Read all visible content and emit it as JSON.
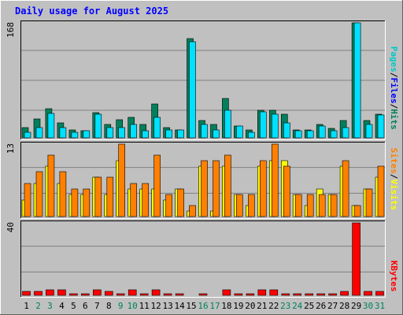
{
  "title": "Daily usage for August 2025",
  "colors": {
    "background": "#c0c0c0",
    "grid": "#808080",
    "hits": "#00805c",
    "files": "#00e0ff",
    "pages": "#00c8c8",
    "sites": "#ff8000",
    "visits": "#ffff00",
    "kbytes": "#ff0000",
    "title": "#0000ff",
    "weekday": "#000000",
    "weekend": "#00805c"
  },
  "chart_data": {
    "type": "bar",
    "categories": [
      "1",
      "2",
      "3",
      "4",
      "5",
      "6",
      "7",
      "8",
      "9",
      "10",
      "11",
      "12",
      "13",
      "14",
      "15",
      "16",
      "17",
      "18",
      "19",
      "20",
      "21",
      "22",
      "23",
      "24",
      "25",
      "26",
      "27",
      "28",
      "29",
      "30",
      "31"
    ],
    "weekend_days": [
      "2",
      "3",
      "9",
      "10",
      "16",
      "17",
      "23",
      "24",
      "30",
      "31"
    ],
    "panels": [
      {
        "id": "hits",
        "max_label": "168",
        "ylim": [
          0,
          168
        ],
        "legend": [
          {
            "text": "Pages",
            "color": "#00c8c8"
          },
          {
            "text": "/",
            "color": "#000000"
          },
          {
            "text": "Files",
            "color": "#0000ff"
          },
          {
            "text": "/",
            "color": "#000000"
          },
          {
            "text": "Hits",
            "color": "#00805c"
          }
        ],
        "series": [
          {
            "name": "Hits",
            "color": "#00805c",
            "values": [
              15,
              28,
              42,
              22,
              12,
              10,
              37,
              20,
              26,
              30,
              19,
              50,
              15,
              12,
              145,
              25,
              20,
              58,
              17,
              12,
              40,
              40,
              35,
              12,
              12,
              20,
              14,
              25,
              168,
              25,
              35
            ]
          },
          {
            "name": "Files",
            "color": "#00e0ff",
            "values": [
              8,
              15,
              36,
              15,
              8,
              10,
              35,
              15,
              15,
              20,
              10,
              30,
              12,
              12,
              140,
              20,
              12,
              40,
              17,
              8,
              38,
              35,
              22,
              10,
              10,
              17,
              10,
              15,
              168,
              20,
              33
            ]
          }
        ]
      },
      {
        "id": "sites",
        "max_label": "13",
        "ylim": [
          0,
          13
        ],
        "legend": [
          {
            "text": "Sites",
            "color": "#ff8000"
          },
          {
            "text": "/",
            "color": "#000000"
          },
          {
            "text": "Visits",
            "color": "#ffff00"
          }
        ],
        "series": [
          {
            "name": "Visits",
            "color": "#ffff00",
            "values": [
              3,
              6,
              9,
              6,
              4,
              4,
              7,
              4,
              10,
              5,
              5,
              5,
              3,
              5,
              1,
              9,
              1,
              9,
              4,
              2,
              9,
              10,
              10,
              4,
              2,
              5,
              4,
              9,
              2,
              5,
              7
            ]
          },
          {
            "name": "Sites",
            "color": "#ff8000",
            "values": [
              6,
              8,
              11,
              8,
              5,
              5,
              7,
              7,
              13,
              6,
              6,
              11,
              4,
              5,
              2,
              10,
              10,
              11,
              4,
              4,
              10,
              13,
              9,
              4,
              4,
              4,
              4,
              10,
              2,
              5,
              9
            ]
          }
        ]
      },
      {
        "id": "kbytes",
        "max_label": "40",
        "ylim": [
          0,
          40
        ],
        "legend": [
          {
            "text": "KBytes",
            "color": "#ff0000"
          }
        ],
        "series": [
          {
            "name": "KBytes",
            "color": "#ff0000",
            "values": [
              2,
              2,
              3,
              3,
              1,
              1,
              3,
              2,
              1,
              3,
              1,
              3,
              1,
              1,
              0,
              1,
              0,
              3,
              1,
              1,
              3,
              3,
              1,
              1,
              1,
              1,
              1,
              2,
              40,
              2,
              2
            ]
          }
        ]
      }
    ]
  }
}
